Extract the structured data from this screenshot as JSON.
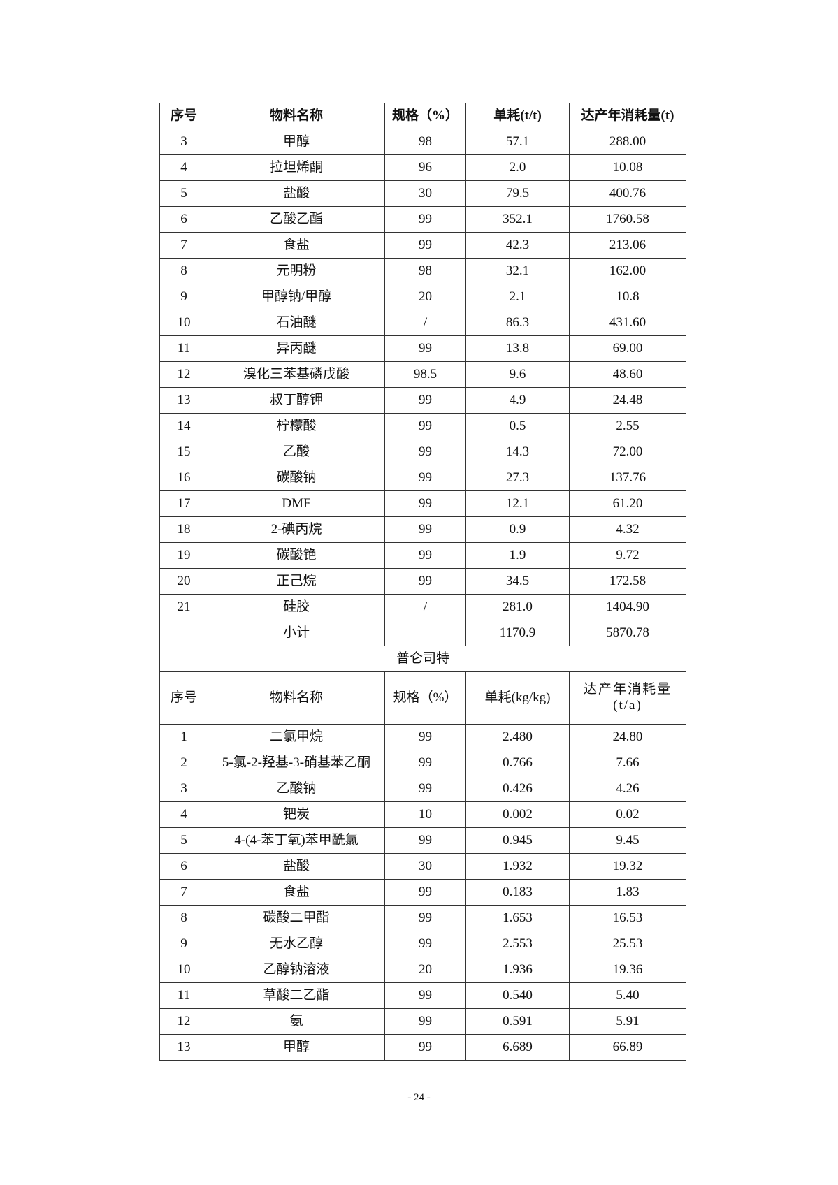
{
  "table1": {
    "headers": [
      "序号",
      "物料名称",
      "规格（%）",
      "单耗(t/t)",
      "达产年消耗量(t)"
    ],
    "rows": [
      [
        "3",
        "甲醇",
        "98",
        "57.1",
        "288.00"
      ],
      [
        "4",
        "拉坦烯酮",
        "96",
        "2.0",
        "10.08"
      ],
      [
        "5",
        "盐酸",
        "30",
        "79.5",
        "400.76"
      ],
      [
        "6",
        "乙酸乙酯",
        "99",
        "352.1",
        "1760.58"
      ],
      [
        "7",
        "食盐",
        "99",
        "42.3",
        "213.06"
      ],
      [
        "8",
        "元明粉",
        "98",
        "32.1",
        "162.00"
      ],
      [
        "9",
        "甲醇钠/甲醇",
        "20",
        "2.1",
        "10.8"
      ],
      [
        "10",
        "石油醚",
        "/",
        "86.3",
        "431.60"
      ],
      [
        "11",
        "异丙醚",
        "99",
        "13.8",
        "69.00"
      ],
      [
        "12",
        "溴化三苯基磷戊酸",
        "98.5",
        "9.6",
        "48.60"
      ],
      [
        "13",
        "叔丁醇钾",
        "99",
        "4.9",
        "24.48"
      ],
      [
        "14",
        "柠檬酸",
        "99",
        "0.5",
        "2.55"
      ],
      [
        "15",
        "乙酸",
        "99",
        "14.3",
        "72.00"
      ],
      [
        "16",
        "碳酸钠",
        "99",
        "27.3",
        "137.76"
      ],
      [
        "17",
        "DMF",
        "99",
        "12.1",
        "61.20"
      ],
      [
        "18",
        "2-碘丙烷",
        "99",
        "0.9",
        "4.32"
      ],
      [
        "19",
        "碳酸铯",
        "99",
        "1.9",
        "9.72"
      ],
      [
        "20",
        "正己烷",
        "99",
        "34.5",
        "172.58"
      ],
      [
        "21",
        "硅胶",
        "/",
        "281.0",
        "1404.90"
      ]
    ],
    "subtotal": [
      "",
      "小计",
      "",
      "1170.9",
      "5870.78"
    ]
  },
  "section_title": "普仑司特",
  "table2": {
    "headers": [
      "序号",
      "物料名称",
      "规格（%）",
      "单耗(kg/kg)",
      "达产年消耗量(t/a)"
    ],
    "rows": [
      [
        "1",
        "二氯甲烷",
        "99",
        "2.480",
        "24.80"
      ],
      [
        "2",
        "5-氯-2-羟基-3-硝基苯乙酮",
        "99",
        "0.766",
        "7.66"
      ],
      [
        "3",
        "乙酸钠",
        "99",
        "0.426",
        "4.26"
      ],
      [
        "4",
        "钯炭",
        "10",
        "0.002",
        "0.02"
      ],
      [
        "5",
        "4-(4-苯丁氧)苯甲酰氯",
        "99",
        "0.945",
        "9.45"
      ],
      [
        "6",
        "盐酸",
        "30",
        "1.932",
        "19.32"
      ],
      [
        "7",
        "食盐",
        "99",
        "0.183",
        "1.83"
      ],
      [
        "8",
        "碳酸二甲酯",
        "99",
        "1.653",
        "16.53"
      ],
      [
        "9",
        "无水乙醇",
        "99",
        "2.553",
        "25.53"
      ],
      [
        "10",
        "乙醇钠溶液",
        "20",
        "1.936",
        "19.36"
      ],
      [
        "11",
        "草酸二乙酯",
        "99",
        "0.540",
        "5.40"
      ],
      [
        "12",
        "氨",
        "99",
        "0.591",
        "5.91"
      ],
      [
        "13",
        "甲醇",
        "99",
        "6.689",
        "66.89"
      ]
    ]
  },
  "page_number": "- 24 -"
}
